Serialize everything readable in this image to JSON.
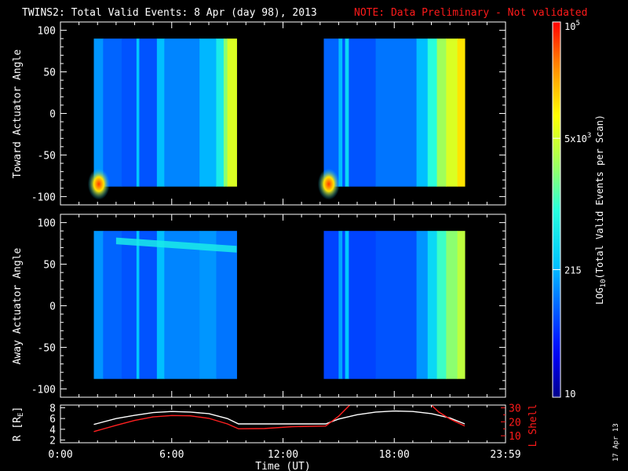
{
  "header": {
    "title": "TWINS2: Total Valid Events:  8 Apr (day  98), 2013",
    "note": "NOTE: Data Preliminary - Not validated"
  },
  "footer": {
    "date_stamp": "17 Apr 13"
  },
  "colors": {
    "note": "#ff1a1a",
    "background": "#000000",
    "r_line": "#ffffff",
    "lshell_line": "#ff2020"
  },
  "chart_data": [
    {
      "type": "heatmap",
      "panel": "toward",
      "ylabel": "Toward Actuator Angle",
      "ylim": [
        -110,
        110
      ],
      "yticks": [
        100,
        50,
        0,
        -50,
        -100
      ],
      "ytick_labels": [
        "100",
        "50",
        "0",
        "-50",
        "-100"
      ],
      "xlim_hours": [
        0,
        24
      ],
      "data_blocks": [
        {
          "t_start": 1.8,
          "t_end": 9.5,
          "angle_min": -88,
          "angle_max": 90
        },
        {
          "t_start": 14.2,
          "t_end": 21.8,
          "angle_min": -88,
          "angle_max": 90
        }
      ],
      "columns": [
        {
          "t0": 1.8,
          "t1": 2.3,
          "level": 0.3
        },
        {
          "t0": 2.3,
          "t1": 3.3,
          "level": 0.24
        },
        {
          "t0": 3.3,
          "t1": 4.1,
          "level": 0.22
        },
        {
          "t0": 4.1,
          "t1": 4.25,
          "level": 0.36
        },
        {
          "t0": 4.25,
          "t1": 5.2,
          "level": 0.22
        },
        {
          "t0": 5.2,
          "t1": 5.6,
          "level": 0.35
        },
        {
          "t0": 5.6,
          "t1": 7.5,
          "level": 0.28
        },
        {
          "t0": 7.5,
          "t1": 8.4,
          "level": 0.34
        },
        {
          "t0": 8.4,
          "t1": 8.8,
          "level": 0.45
        },
        {
          "t0": 8.8,
          "t1": 9.0,
          "level": 0.6
        },
        {
          "t0": 9.0,
          "t1": 9.5,
          "level": 0.7
        },
        {
          "t0": 14.2,
          "t1": 15.0,
          "level": 0.24
        },
        {
          "t0": 15.0,
          "t1": 15.2,
          "level": 0.35
        },
        {
          "t0": 15.2,
          "t1": 15.35,
          "level": 0.22
        },
        {
          "t0": 15.35,
          "t1": 15.55,
          "level": 0.4
        },
        {
          "t0": 15.55,
          "t1": 17.0,
          "level": 0.22
        },
        {
          "t0": 17.0,
          "t1": 19.2,
          "level": 0.26
        },
        {
          "t0": 19.2,
          "t1": 19.8,
          "level": 0.35
        },
        {
          "t0": 19.8,
          "t1": 20.3,
          "level": 0.5
        },
        {
          "t0": 20.3,
          "t1": 20.8,
          "level": 0.62
        },
        {
          "t0": 20.8,
          "t1": 21.4,
          "level": 0.7
        },
        {
          "t0": 21.4,
          "t1": 21.8,
          "level": 0.78
        }
      ],
      "hotspots": [
        {
          "t": 1.9,
          "angle": -85,
          "level": 0.95
        },
        {
          "t": 14.3,
          "angle": -85,
          "level": 0.95
        }
      ]
    },
    {
      "type": "heatmap",
      "panel": "away",
      "ylabel": "Away Actuator Angle",
      "ylim": [
        -110,
        110
      ],
      "yticks": [
        100,
        50,
        0,
        -50,
        -100
      ],
      "ytick_labels": [
        "100",
        "50",
        "0",
        "-50",
        "-100"
      ],
      "xlim_hours": [
        0,
        24
      ],
      "data_blocks": [
        {
          "t_start": 1.8,
          "t_end": 9.5,
          "angle_min": -88,
          "angle_max": 90
        },
        {
          "t_start": 14.2,
          "t_end": 21.8,
          "angle_min": -88,
          "angle_max": 90
        }
      ],
      "columns": [
        {
          "t0": 1.8,
          "t1": 2.3,
          "level": 0.3
        },
        {
          "t0": 2.3,
          "t1": 3.3,
          "level": 0.24
        },
        {
          "t0": 3.3,
          "t1": 4.1,
          "level": 0.22
        },
        {
          "t0": 4.1,
          "t1": 4.25,
          "level": 0.36
        },
        {
          "t0": 4.25,
          "t1": 5.2,
          "level": 0.22
        },
        {
          "t0": 5.2,
          "t1": 5.6,
          "level": 0.35
        },
        {
          "t0": 5.6,
          "t1": 7.5,
          "level": 0.28
        },
        {
          "t0": 7.5,
          "t1": 8.4,
          "level": 0.3
        },
        {
          "t0": 8.4,
          "t1": 9.5,
          "level": 0.26
        },
        {
          "t0": 14.2,
          "t1": 15.0,
          "level": 0.2
        },
        {
          "t0": 15.0,
          "t1": 15.2,
          "level": 0.32
        },
        {
          "t0": 15.2,
          "t1": 15.35,
          "level": 0.2
        },
        {
          "t0": 15.35,
          "t1": 15.55,
          "level": 0.36
        },
        {
          "t0": 15.55,
          "t1": 17.0,
          "level": 0.2
        },
        {
          "t0": 17.0,
          "t1": 19.2,
          "level": 0.22
        },
        {
          "t0": 19.2,
          "t1": 19.8,
          "level": 0.3
        },
        {
          "t0": 19.8,
          "t1": 20.3,
          "level": 0.4
        },
        {
          "t0": 20.3,
          "t1": 20.8,
          "level": 0.52
        },
        {
          "t0": 20.8,
          "t1": 21.4,
          "level": 0.6
        },
        {
          "t0": 21.4,
          "t1": 21.8,
          "level": 0.66
        }
      ],
      "band": {
        "t_start": 3.0,
        "t_end": 9.5,
        "angle_start": 78,
        "angle_end": 68,
        "level": 0.45
      }
    },
    {
      "type": "line",
      "panel": "ephemeris",
      "ylabel_left": "R [R",
      "ylabel_left_sub": "E",
      "ylabel_left_end": "]",
      "ylabel_right": "L Shell",
      "ylim_left": [
        1.5,
        8.5
      ],
      "yticks_left": [
        8,
        6,
        4,
        2
      ],
      "yticks_left_labels": [
        "8",
        "6",
        "4",
        "2"
      ],
      "ylim_right": [
        5,
        32
      ],
      "yticks_right": [
        30,
        20,
        10
      ],
      "yticks_right_labels": [
        "30",
        "20",
        "10"
      ],
      "minor_right_ticks": [
        25,
        15
      ],
      "series": [
        {
          "axis": "left",
          "color": "#ffffff",
          "x": [
            1.8,
            3.0,
            4.0,
            5.0,
            6.0,
            7.0,
            8.0,
            9.0,
            9.6,
            12.0,
            14.3,
            15.0,
            16.0,
            17.0,
            18.0,
            19.0,
            20.0,
            21.0,
            21.8
          ],
          "y": [
            4.9,
            6.0,
            6.6,
            7.1,
            7.3,
            7.2,
            6.9,
            6.0,
            5.0,
            5.0,
            5.0,
            5.9,
            6.7,
            7.2,
            7.4,
            7.3,
            6.9,
            6.1,
            5.0
          ]
        },
        {
          "axis": "right",
          "color": "#ff2020",
          "x": [
            1.8,
            3.0,
            4.0,
            5.0,
            6.0,
            7.0,
            8.0,
            9.0,
            9.6,
            11.0,
            12.5,
            14.3,
            15.0,
            15.6
          ],
          "y": [
            13,
            17.5,
            21,
            23.5,
            24.5,
            24.3,
            22.5,
            18.5,
            15,
            15.2,
            16.5,
            17,
            24,
            32
          ]
        },
        {
          "axis": "right",
          "color": "#ff2020",
          "x": [
            20.0,
            20.4,
            21.0,
            21.8
          ],
          "y": [
            32,
            27,
            22,
            17
          ]
        }
      ]
    }
  ],
  "colorbar": {
    "label_prefix": "LOG",
    "label_sub": "10",
    "label_rest": "(Total Valid  Events per Scan)",
    "ticks": [
      {
        "level": 1.0,
        "base": "10",
        "exp": "5"
      },
      {
        "level": 0.69,
        "base": "5x10",
        "exp": "3"
      },
      {
        "level": 0.34,
        "base": "215",
        "exp": ""
      },
      {
        "level": 0.0,
        "base": "10",
        "exp": ""
      }
    ]
  },
  "xaxis": {
    "label": "Time (UT)",
    "ticks": [
      0,
      6,
      12,
      18,
      24
    ],
    "tick_labels": [
      "0:00",
      "6:00",
      "12:00",
      "18:00",
      "23:59"
    ],
    "minor_step_hours": 1
  }
}
